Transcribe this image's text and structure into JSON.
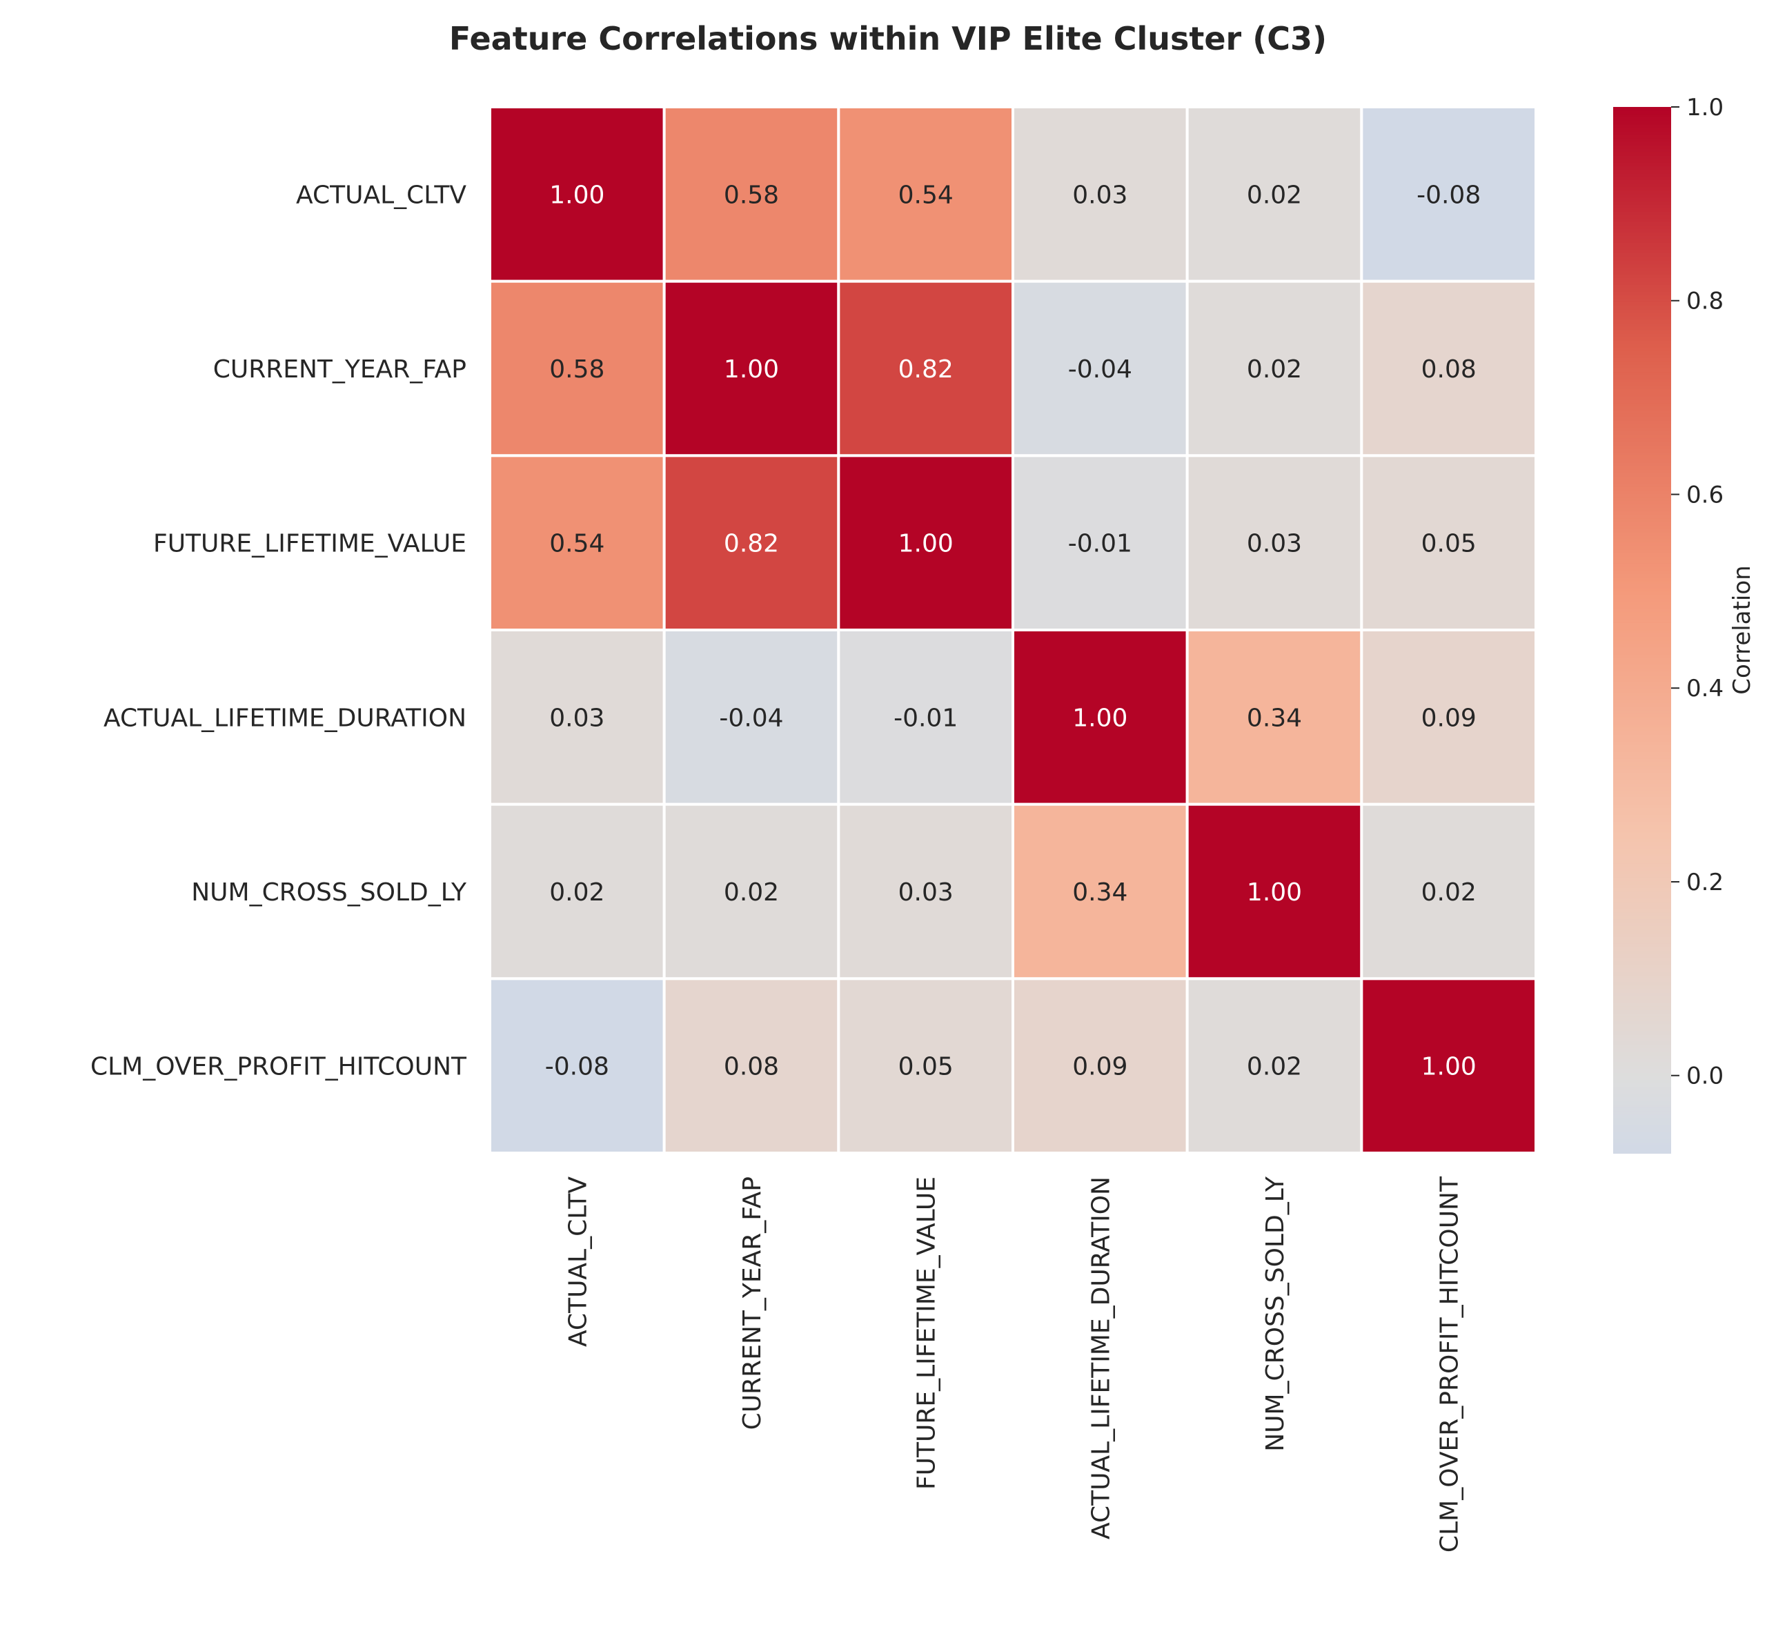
{
  "chart_data": {
    "type": "heatmap",
    "title": "Feature Correlations within VIP Elite Cluster (C3)",
    "rows": [
      "ACTUAL_CLTV",
      "CURRENT_YEAR_FAP",
      "FUTURE_LIFETIME_VALUE",
      "ACTUAL_LIFETIME_DURATION",
      "NUM_CROSS_SOLD_LY",
      "CLM_OVER_PROFIT_HITCOUNT"
    ],
    "columns": [
      "ACTUAL_CLTV",
      "CURRENT_YEAR_FAP",
      "FUTURE_LIFETIME_VALUE",
      "ACTUAL_LIFETIME_DURATION",
      "NUM_CROSS_SOLD_LY",
      "CLM_OVER_PROFIT_HITCOUNT"
    ],
    "values": [
      [
        1.0,
        0.58,
        0.54,
        0.03,
        0.02,
        -0.08
      ],
      [
        0.58,
        1.0,
        0.82,
        -0.04,
        0.02,
        0.08
      ],
      [
        0.54,
        0.82,
        1.0,
        -0.01,
        0.03,
        0.05
      ],
      [
        0.03,
        -0.04,
        -0.01,
        1.0,
        0.34,
        0.09
      ],
      [
        0.02,
        0.02,
        0.03,
        0.34,
        1.0,
        0.02
      ],
      [
        -0.08,
        0.08,
        0.05,
        0.09,
        0.02,
        1.0
      ]
    ],
    "colormap": "coolwarm",
    "vmin": -0.08,
    "vmax": 1.0,
    "colorbar": {
      "label": "Correlation",
      "ticks": [
        0.0,
        0.2,
        0.4,
        0.6,
        0.8,
        1.0
      ],
      "tick_labels": [
        "0.0",
        "0.2",
        "0.4",
        "0.6",
        "0.8",
        "1.0"
      ]
    },
    "annotation_format": "2 decimals"
  }
}
